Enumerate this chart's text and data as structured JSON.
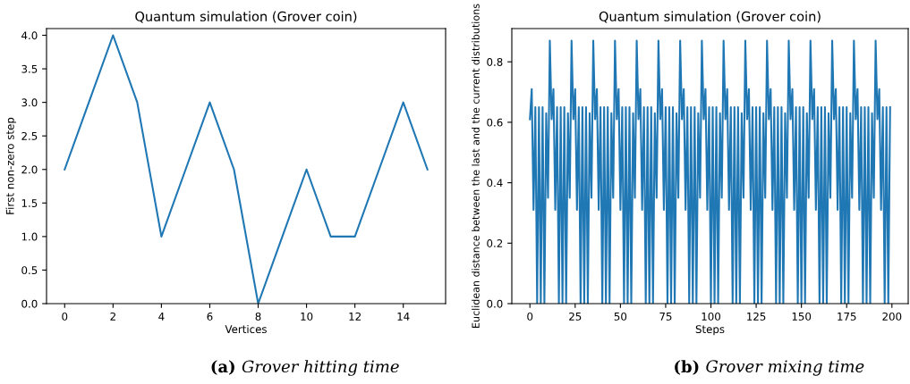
{
  "chart_data": [
    {
      "type": "line",
      "title": "Quantum simulation (Grover coin)",
      "xlabel": "Vertices",
      "ylabel": "First non-zero step",
      "x": [
        0,
        1,
        2,
        3,
        4,
        5,
        6,
        7,
        8,
        9,
        10,
        11,
        12,
        13,
        14,
        15
      ],
      "series": [
        {
          "color": "#1f77b4",
          "values": [
            2,
            3,
            4,
            3,
            1,
            2,
            3,
            2,
            0,
            1,
            2,
            1,
            1,
            2,
            3,
            2
          ]
        }
      ],
      "xlim": [
        -0.75,
        15.75
      ],
      "ylim": [
        0,
        4.1
      ],
      "xticks": [
        0,
        2,
        4,
        6,
        8,
        10,
        12,
        14
      ],
      "yticks": [
        {
          "value": 0,
          "label": "0.0"
        },
        {
          "value": 0.5,
          "label": "0.5"
        },
        {
          "value": 1,
          "label": "1.0"
        },
        {
          "value": 1.5,
          "label": "1.5"
        },
        {
          "value": 2,
          "label": "2.0"
        },
        {
          "value": 2.5,
          "label": "2.5"
        },
        {
          "value": 3,
          "label": "3.0"
        },
        {
          "value": 3.5,
          "label": "3.5"
        },
        {
          "value": 4,
          "label": "4.0"
        }
      ],
      "grid": false,
      "legend": false,
      "annotations": [
        "(a) Grover hitting time"
      ]
    },
    {
      "type": "line",
      "title": "Quantum simulation (Grover coin)",
      "xlabel": "Steps",
      "ylabel": "Euclidean distance between the last and the current distributions",
      "x": [
        0,
        1,
        2,
        3,
        4,
        5,
        6,
        7,
        8,
        9,
        10,
        11,
        12,
        13,
        14,
        15,
        16,
        17,
        18,
        19,
        20,
        21,
        22,
        23,
        24,
        25,
        26,
        27,
        28,
        29,
        30,
        31,
        32,
        33,
        34,
        35,
        36,
        37,
        38,
        39,
        40,
        41,
        42,
        43,
        44,
        45,
        46,
        47,
        48,
        49,
        50,
        51,
        52,
        53,
        54,
        55,
        56,
        57,
        58,
        59,
        60,
        61,
        62,
        63,
        64,
        65,
        66,
        67,
        68,
        69,
        70,
        71,
        72,
        73,
        74,
        75,
        76,
        77,
        78,
        79,
        80,
        81,
        82,
        83,
        84,
        85,
        86,
        87,
        88,
        89,
        90,
        91,
        92,
        93,
        94,
        95,
        96,
        97,
        98,
        99,
        100,
        101,
        102,
        103,
        104,
        105,
        106,
        107,
        108,
        109,
        110,
        111,
        112,
        113,
        114,
        115,
        116,
        117,
        118,
        119,
        120,
        121,
        122,
        123,
        124,
        125,
        126,
        127,
        128,
        129,
        130,
        131,
        132,
        133,
        134,
        135,
        136,
        137,
        138,
        139,
        140,
        141,
        142,
        143,
        144,
        145,
        146,
        147,
        148,
        149,
        150,
        151,
        152,
        153,
        154,
        155,
        156,
        157,
        158,
        159,
        160,
        161,
        162,
        163,
        164,
        165,
        166,
        167,
        168,
        169,
        170,
        171,
        172,
        173,
        174,
        175,
        176,
        177,
        178,
        179,
        180,
        181,
        182,
        183,
        184,
        185,
        186,
        187,
        188,
        189,
        190,
        191,
        192,
        193,
        194,
        195,
        196,
        197,
        198,
        199
      ],
      "series": [
        {
          "color": "#1f77b4",
          "values": [
            0.61,
            0.71,
            0.31,
            0.65,
            0,
            0.65,
            0,
            0.65,
            0,
            0.63,
            0.35,
            0.87,
            0.61,
            0.71,
            0.31,
            0.65,
            0,
            0.65,
            0,
            0.65,
            0,
            0.63,
            0.35,
            0.87,
            0.61,
            0.71,
            0.31,
            0.65,
            0,
            0.65,
            0,
            0.65,
            0,
            0.63,
            0.35,
            0.87,
            0.61,
            0.71,
            0.31,
            0.65,
            0,
            0.65,
            0,
            0.65,
            0,
            0.63,
            0.35,
            0.87,
            0.61,
            0.71,
            0.31,
            0.65,
            0,
            0.65,
            0,
            0.65,
            0,
            0.63,
            0.35,
            0.87,
            0.61,
            0.71,
            0.31,
            0.65,
            0,
            0.65,
            0,
            0.65,
            0,
            0.63,
            0.35,
            0.87,
            0.61,
            0.71,
            0.31,
            0.65,
            0,
            0.65,
            0,
            0.65,
            0,
            0.63,
            0.35,
            0.87,
            0.61,
            0.71,
            0.31,
            0.65,
            0,
            0.65,
            0,
            0.65,
            0,
            0.63,
            0.35,
            0.87,
            0.61,
            0.71,
            0.31,
            0.65,
            0,
            0.65,
            0,
            0.65,
            0,
            0.63,
            0.35,
            0.87,
            0.61,
            0.71,
            0.31,
            0.65,
            0,
            0.65,
            0,
            0.65,
            0,
            0.63,
            0.35,
            0.87,
            0.61,
            0.71,
            0.31,
            0.65,
            0,
            0.65,
            0,
            0.65,
            0,
            0.63,
            0.35,
            0.87,
            0.61,
            0.71,
            0.31,
            0.65,
            0,
            0.65,
            0,
            0.65,
            0,
            0.63,
            0.35,
            0.87,
            0.61,
            0.71,
            0.31,
            0.65,
            0,
            0.65,
            0,
            0.65,
            0,
            0.63,
            0.35,
            0.87,
            0.61,
            0.71,
            0.31,
            0.65,
            0,
            0.65,
            0,
            0.65,
            0,
            0.63,
            0.35,
            0.87,
            0.61,
            0.71,
            0.31,
            0.65,
            0,
            0.65,
            0,
            0.65,
            0,
            0.63,
            0.35,
            0.87,
            0.61,
            0.71,
            0.31,
            0.65,
            0,
            0.65,
            0,
            0.65,
            0,
            0.63,
            0.35,
            0.87,
            0.61,
            0.71,
            0.31,
            0.65,
            0,
            0.65,
            0,
            0.65
          ]
        }
      ],
      "xlim": [
        -10,
        209
      ],
      "ylim": [
        0,
        0.91
      ],
      "xticks": [
        0,
        25,
        50,
        75,
        100,
        125,
        150,
        175,
        200
      ],
      "yticks": [
        {
          "value": 0,
          "label": "0.0"
        },
        {
          "value": 0.2,
          "label": "0.2"
        },
        {
          "value": 0.4,
          "label": "0.4"
        },
        {
          "value": 0.6,
          "label": "0.6"
        },
        {
          "value": 0.8,
          "label": "0.8"
        }
      ],
      "grid": false,
      "legend": false,
      "annotations": [
        "(b) Grover mixing time"
      ]
    }
  ]
}
